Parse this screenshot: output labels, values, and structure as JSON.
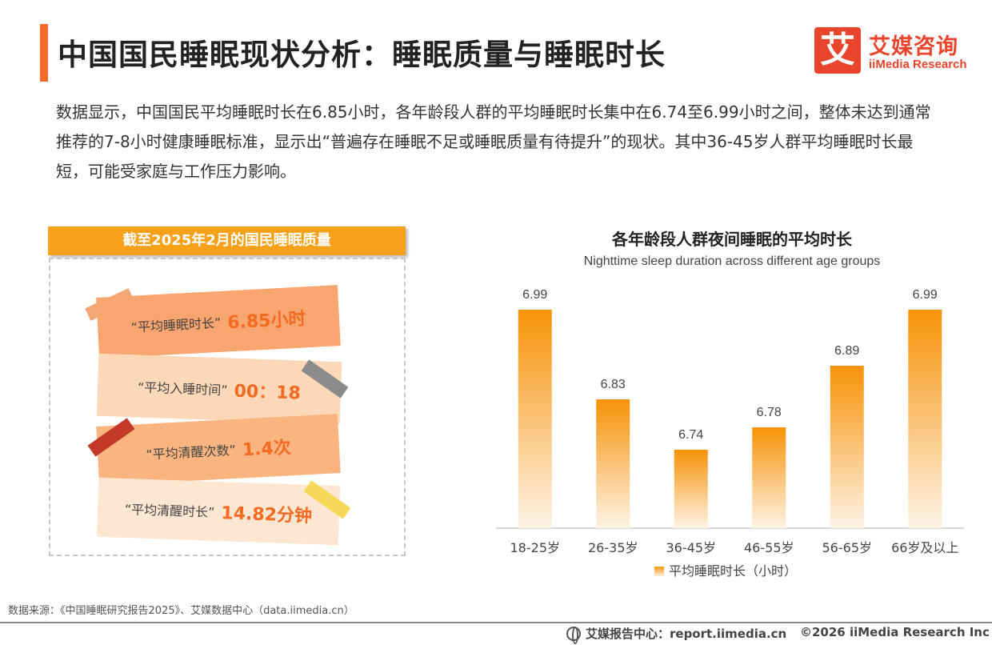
{
  "header": {
    "title": "中国国民睡眠现状分析：睡眠质量与睡眠时长"
  },
  "logo": {
    "mark": "艾",
    "cn": "艾媒咨询",
    "en": "iiMedia Research"
  },
  "intro": "数据显示，中国国民平均睡眠时长在6.85小时，各年龄段人群的平均睡眠时长集中在6.74至6.99小时之间，整体未达到通常推荐的7-8小时健康睡眠标准，显示出“普遍存在睡眠不足或睡眠质量有待提升”的现状。其中36-45岁人群平均睡眠时长最短，可能受家庭与工作压力影响。",
  "left_panel": {
    "header": "截至2025年2月的国民睡眠质量",
    "cards": [
      {
        "label": "“平均睡眠时长”",
        "value": "6.85小时"
      },
      {
        "label": "“平均入睡时间”",
        "value": "00：18"
      },
      {
        "label": "“平均清醒次数”",
        "value": "1.4次"
      },
      {
        "label": "“平均清醒时长”",
        "value": "14.82分钟"
      }
    ]
  },
  "chart_data": {
    "type": "bar",
    "title": "各年龄段人群夜间睡眠的平均时长",
    "subtitle": "Nighttime sleep duration across different age groups",
    "categories": [
      "18-25岁",
      "26-35岁",
      "36-45岁",
      "46-55岁",
      "56-65岁",
      "66岁及以上"
    ],
    "series": [
      {
        "name": "平均睡眠时长（小时）",
        "values": [
          6.99,
          6.83,
          6.74,
          6.78,
          6.89,
          6.99
        ]
      }
    ],
    "legend": "bottom",
    "grid": false,
    "colors": {
      "bar_top": "#f79207",
      "bar_bottom": "#fdf3e6"
    }
  },
  "footer": {
    "source": "数据来源：《中国睡眠研究报告2025》、艾媒数据中心（data.iimedia.cn）",
    "report_center": "艾媒报告中心：report.iimedia.cn",
    "copyright": "©2026  iiMedia Research Inc"
  }
}
